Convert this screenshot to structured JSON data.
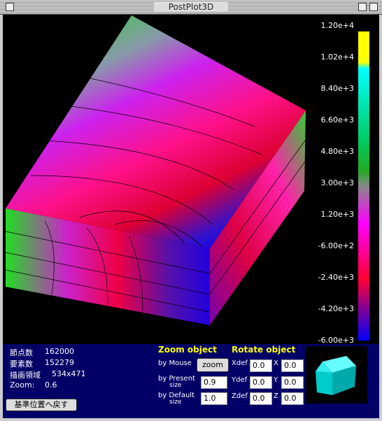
{
  "window": {
    "title": "PostPlot3D"
  },
  "colorbar": {
    "labels": [
      "1.20e+4",
      "1.02e+4",
      "8.40e+3",
      "6.60e+3",
      "4.80e+3",
      "3.00e+3",
      "1.20e+3",
      "-6.00e+2",
      "-2.40e+3",
      "-4.20e+3",
      "-6.00e+3"
    ]
  },
  "info": {
    "rows": [
      [
        "節点数",
        "162000"
      ],
      [
        "要素数",
        "152279"
      ],
      [
        "描画領域",
        "534x471"
      ],
      [
        "Zoom:",
        "0.6"
      ]
    ],
    "reset_button": "基準位置へ戻す"
  },
  "zoom": {
    "title": "Zoom object",
    "by_mouse": "by Mouse",
    "zoom_button": "zoom",
    "by_present": "by Present",
    "by_default": "by Default",
    "size": "size",
    "present_value": "0.9",
    "default_value": "1.0"
  },
  "rotate": {
    "title": "Rotate object",
    "xdef": "Xdef",
    "xdef_value": "0.0",
    "x": "X",
    "x_value": "0.0",
    "ydef": "Ydef",
    "ydef_value": "0.0",
    "y": "Y",
    "y_value": "0.0",
    "zdef": "Zdef",
    "zdef_value": "0.0",
    "z": "Z",
    "z_value": "0.0"
  }
}
